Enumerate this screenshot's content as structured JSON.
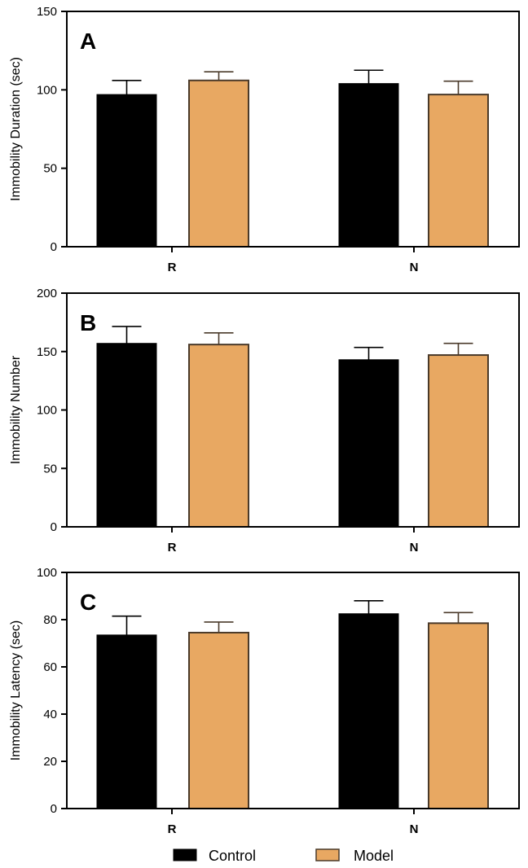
{
  "legend": {
    "items": [
      {
        "label": "Control",
        "color": "#000000"
      },
      {
        "label": "Model",
        "color": "#E8A862"
      }
    ]
  },
  "chart_data": [
    {
      "type": "bar",
      "panel": "A",
      "categories": [
        "R",
        "N"
      ],
      "ylabel": "Immobility Duration (sec)",
      "ylim": [
        0,
        150
      ],
      "yticks": [
        0,
        50,
        100,
        150
      ],
      "series": [
        {
          "name": "Control",
          "values": [
            97,
            104
          ],
          "errors": [
            9,
            8.5
          ]
        },
        {
          "name": "Model",
          "values": [
            106,
            97
          ],
          "errors": [
            5.5,
            8.5
          ]
        }
      ]
    },
    {
      "type": "bar",
      "panel": "B",
      "categories": [
        "R",
        "N"
      ],
      "ylabel": "Immobility Number",
      "ylim": [
        0,
        200
      ],
      "yticks": [
        0,
        50,
        100,
        150,
        200
      ],
      "series": [
        {
          "name": "Control",
          "values": [
            157,
            143
          ],
          "errors": [
            14.5,
            10.5
          ]
        },
        {
          "name": "Model",
          "values": [
            156,
            147
          ],
          "errors": [
            10,
            10
          ]
        }
      ]
    },
    {
      "type": "bar",
      "panel": "C",
      "categories": [
        "R",
        "N"
      ],
      "ylabel": "Immobility Latency (sec)",
      "ylim": [
        0,
        100
      ],
      "yticks": [
        0,
        20,
        40,
        60,
        80,
        100
      ],
      "series": [
        {
          "name": "Control",
          "values": [
            73.5,
            82.5
          ],
          "errors": [
            8,
            5.5
          ]
        },
        {
          "name": "Model",
          "values": [
            74.5,
            78.5
          ],
          "errors": [
            4.5,
            4.5
          ]
        }
      ]
    }
  ]
}
